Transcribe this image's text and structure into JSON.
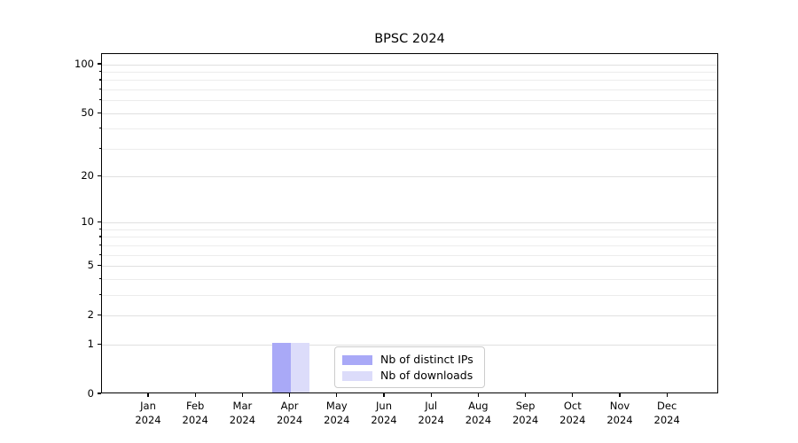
{
  "figure": {
    "background": "#ffffff",
    "spine_color": "#000000",
    "grid_color_major": "#e0e0e0",
    "grid_color_minor": "#ececec"
  },
  "chart_data": {
    "type": "bar",
    "title": "BPSC 2024",
    "xlabel": "",
    "ylabel": "",
    "categories": [
      "Jan",
      "Feb",
      "Mar",
      "Apr",
      "May",
      "Jun",
      "Jul",
      "Aug",
      "Sep",
      "Oct",
      "Nov",
      "Dec"
    ],
    "category_year": "2024",
    "series": [
      {
        "name": "Nb of distinct IPs",
        "color": "#a9a9f7",
        "values": [
          0,
          0,
          0,
          1,
          0,
          0,
          0,
          0,
          0,
          0,
          0,
          0
        ]
      },
      {
        "name": "Nb of downloads",
        "color": "#dcdcfa",
        "values": [
          0,
          0,
          0,
          1,
          0,
          0,
          0,
          0,
          0,
          0,
          0,
          0
        ]
      }
    ],
    "y_axis": {
      "scale": "log1p",
      "ylim": [
        0,
        105
      ],
      "tick_values": [
        0,
        1,
        2,
        5,
        10,
        20,
        50,
        100
      ],
      "tick_labels": [
        "0",
        "1",
        "2",
        "5",
        "10",
        "20",
        "50",
        "100"
      ],
      "minor_gridline_values": [
        3,
        4,
        6,
        7,
        8,
        9,
        30,
        40,
        60,
        70,
        80,
        90
      ],
      "grid": "horizontal"
    },
    "legend": {
      "position": "lower center",
      "items": [
        {
          "label": "Nb of distinct IPs",
          "color": "#a9a9f7"
        },
        {
          "label": "Nb of downloads",
          "color": "#dcdcfa"
        }
      ]
    }
  }
}
